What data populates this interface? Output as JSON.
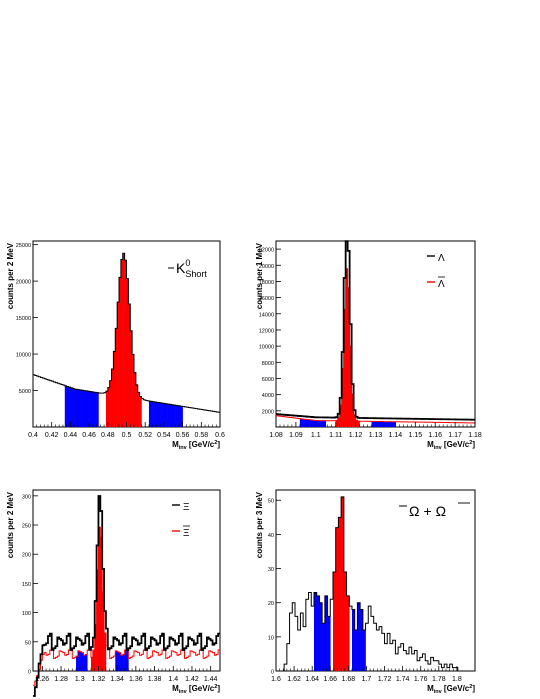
{
  "chart_data": [
    {
      "id": "k0short",
      "type": "histogram",
      "ylabel": "counts per 2 MeV",
      "xlabel_main": "M",
      "xlabel_sub": "inv",
      "xlabel_unit": "[GeV/c",
      "xlabel_sup": "2",
      "xlabel_end": "]",
      "xlim": [
        0.4,
        0.6
      ],
      "ylim": [
        0,
        25500
      ],
      "xticks": [
        0.4,
        0.42,
        0.44,
        0.46,
        0.48,
        0.5,
        0.52,
        0.54,
        0.56,
        0.58,
        0.6
      ],
      "xtick_labels": [
        "0.4",
        "0.42",
        "0.44",
        "0.46",
        "0.48",
        "0.5",
        "0.52",
        "0.54",
        "0.56",
        "0.58",
        "0.6"
      ],
      "yticks": [
        5000,
        10000,
        15000,
        20000,
        25000
      ],
      "ytick_labels": [
        "5000",
        "10000",
        "15000",
        "20000",
        "25000"
      ],
      "legend": {
        "symbol": "K",
        "sup": "0",
        "sub": "Short"
      },
      "peak": {
        "mu": 0.497,
        "sigma": 0.0065,
        "amp": 19700
      },
      "background": {
        "y_start": 7200,
        "y_end": 2000,
        "x_knee": 0.445,
        "y_knee": 5200
      },
      "signal_region": [
        0.478,
        0.516
      ],
      "sideband_regions": [
        [
          0.435,
          0.47
        ],
        [
          0.524,
          0.56
        ]
      ],
      "colors": {
        "signal": "#ff0000",
        "sideband": "#0000ff",
        "line": "#000000"
      }
    },
    {
      "id": "lambda",
      "type": "histogram",
      "ylabel": "counts per 1 MeV",
      "xlabel_main": "M",
      "xlabel_sub": "inv",
      "xlabel_unit": "[GeV/c",
      "xlabel_sup": "2",
      "xlabel_end": "]",
      "xlim": [
        1.08,
        1.18
      ],
      "ylim": [
        0,
        23000
      ],
      "xticks": [
        1.08,
        1.09,
        1.1,
        1.11,
        1.12,
        1.13,
        1.14,
        1.15,
        1.16,
        1.17,
        1.18
      ],
      "xtick_labels": [
        "1.08",
        "1.09",
        "1.1",
        "1.11",
        "1.12",
        "1.13",
        "1.14",
        "1.15",
        "1.16",
        "1.17",
        "1.18"
      ],
      "yticks": [
        2000,
        4000,
        6000,
        8000,
        10000,
        12000,
        14000,
        16000,
        18000,
        20000,
        22000
      ],
      "ytick_labels": [
        "2000",
        "4000",
        "6000",
        "8000",
        "10000",
        "12000",
        "14000",
        "16000",
        "18000",
        "20000",
        "22000"
      ],
      "legend": [
        {
          "symbol": "Λ",
          "color": "#000000"
        },
        {
          "symbol": "Λ",
          "bar": true,
          "color": "#ff0000"
        }
      ],
      "series": [
        {
          "name": "Λ",
          "color": "#000000",
          "peak": {
            "mu": 1.1157,
            "sigma": 0.0015,
            "amp": 23800
          },
          "background": {
            "y_start": 1600,
            "y_end": 900,
            "x_knee": 1.1,
            "y_knee": 1200
          }
        },
        {
          "name": "anti-Λ",
          "color": "#ff0000",
          "peak": {
            "mu": 1.1157,
            "sigma": 0.0015,
            "amp": 19000
          },
          "background": {
            "y_start": 1400,
            "y_end": 500,
            "x_knee": 1.1,
            "y_knee": 800
          }
        }
      ],
      "signal_region": [
        1.11,
        1.122
      ],
      "sideband_regions": [
        [
          1.092,
          1.1045
        ],
        [
          1.128,
          1.14
        ]
      ],
      "colors": {
        "signal": "#ff0000",
        "sideband": "#0000ff"
      }
    },
    {
      "id": "xi",
      "type": "histogram",
      "ylabel": "counts per 2 MeV",
      "xlabel_main": "M",
      "xlabel_sub": "inv",
      "xlabel_unit": "[GeV/c",
      "xlabel_sup": "2",
      "xlabel_end": "]",
      "xlim": [
        1.25,
        1.45
      ],
      "ylim": [
        0,
        310
      ],
      "xticks": [
        1.26,
        1.28,
        1.3,
        1.32,
        1.34,
        1.36,
        1.38,
        1.4,
        1.42,
        1.44
      ],
      "xtick_labels": [
        "1.26",
        "1.28",
        "1.3",
        "1.32",
        "1.34",
        "1.36",
        "1.38",
        "1.4",
        "1.42",
        "1.44"
      ],
      "yticks": [
        0,
        50,
        100,
        150,
        200,
        250,
        300
      ],
      "ytick_labels": [
        "0",
        "50",
        "100",
        "150",
        "200",
        "250",
        "300"
      ],
      "legend": [
        {
          "symbol": "Ξ",
          "color": "#000000"
        },
        {
          "symbol": "Ξ",
          "bar": true,
          "color": "#ff0000"
        }
      ],
      "series": [
        {
          "name": "Ξ",
          "color": "#000000",
          "peak": {
            "mu": 1.3217,
            "sigma": 0.0028,
            "amp": 255
          },
          "bkg_level": 50,
          "bkg_start": 1.262
        },
        {
          "name": "anti-Ξ",
          "color": "#ff0000",
          "peak": {
            "mu": 1.3217,
            "sigma": 0.0028,
            "amp": 220
          },
          "bkg_level": 30,
          "bkg_start": 1.262
        }
      ],
      "signal_region": [
        1.313,
        1.329
      ],
      "sideband_regions": [
        [
          1.296,
          1.308
        ],
        [
          1.338,
          1.351
        ]
      ],
      "colors": {
        "signal": "#ff0000",
        "sideband": "#0000ff"
      }
    },
    {
      "id": "omega",
      "type": "histogram",
      "ylabel": "counts per 3 MeV",
      "xlabel_main": "M",
      "xlabel_sub": "inv",
      "xlabel_unit": "[GeV/c",
      "xlabel_sup": "2",
      "xlabel_end": "]",
      "xlim": [
        1.6,
        1.82
      ],
      "ylim": [
        0,
        53
      ],
      "xticks": [
        1.6,
        1.62,
        1.64,
        1.66,
        1.68,
        1.7,
        1.72,
        1.74,
        1.76,
        1.78,
        1.8
      ],
      "xtick_labels": [
        "1.6",
        "1.62",
        "1.64",
        "1.66",
        "1.68",
        "1.7",
        "1.72",
        "1.74",
        "1.76",
        "1.78",
        "1.8"
      ],
      "yticks": [
        0,
        10,
        20,
        30,
        40,
        50
      ],
      "ytick_labels": [
        "0",
        "10",
        "20",
        "30",
        "40",
        "50"
      ],
      "legend": {
        "symbol": "Ω",
        "plus": "+",
        "bar_symbol": "Ω"
      },
      "bins": [
        [
          1.609,
          1.612,
          2
        ],
        [
          1.612,
          1.615,
          8
        ],
        [
          1.615,
          1.618,
          17
        ],
        [
          1.618,
          1.621,
          20
        ],
        [
          1.621,
          1.624,
          16
        ],
        [
          1.624,
          1.627,
          12
        ],
        [
          1.627,
          1.63,
          17
        ],
        [
          1.63,
          1.633,
          13
        ],
        [
          1.633,
          1.636,
          21
        ],
        [
          1.636,
          1.639,
          23
        ],
        [
          1.639,
          1.642,
          19
        ],
        [
          1.642,
          1.645,
          23
        ],
        [
          1.645,
          1.648,
          22
        ],
        [
          1.648,
          1.651,
          20
        ],
        [
          1.651,
          1.654,
          14
        ],
        [
          1.654,
          1.657,
          22
        ],
        [
          1.657,
          1.66,
          16
        ],
        [
          1.66,
          1.663,
          21
        ],
        [
          1.663,
          1.666,
          29
        ],
        [
          1.666,
          1.669,
          42
        ],
        [
          1.669,
          1.672,
          45
        ],
        [
          1.672,
          1.675,
          51
        ],
        [
          1.675,
          1.678,
          29
        ],
        [
          1.678,
          1.681,
          22
        ],
        [
          1.681,
          1.684,
          19
        ],
        [
          1.684,
          1.687,
          18
        ],
        [
          1.687,
          1.69,
          12
        ],
        [
          1.69,
          1.693,
          20
        ],
        [
          1.693,
          1.696,
          18
        ],
        [
          1.696,
          1.699,
          12
        ],
        [
          1.699,
          1.702,
          14
        ],
        [
          1.702,
          1.705,
          19
        ],
        [
          1.705,
          1.708,
          16
        ],
        [
          1.708,
          1.711,
          14
        ],
        [
          1.711,
          1.714,
          12
        ],
        [
          1.714,
          1.717,
          13
        ],
        [
          1.717,
          1.72,
          11
        ],
        [
          1.72,
          1.723,
          8
        ],
        [
          1.723,
          1.726,
          11
        ],
        [
          1.726,
          1.729,
          8
        ],
        [
          1.729,
          1.732,
          9
        ],
        [
          1.732,
          1.735,
          5
        ],
        [
          1.735,
          1.738,
          7
        ],
        [
          1.738,
          1.741,
          8
        ],
        [
          1.741,
          1.744,
          6
        ],
        [
          1.744,
          1.747,
          5
        ],
        [
          1.747,
          1.75,
          7
        ],
        [
          1.75,
          1.753,
          5
        ],
        [
          1.753,
          1.756,
          6
        ],
        [
          1.756,
          1.759,
          3
        ],
        [
          1.759,
          1.762,
          4
        ],
        [
          1.762,
          1.765,
          5
        ],
        [
          1.765,
          1.768,
          3
        ],
        [
          1.768,
          1.771,
          2
        ],
        [
          1.771,
          1.774,
          4
        ],
        [
          1.774,
          1.777,
          3
        ],
        [
          1.777,
          1.78,
          3
        ],
        [
          1.78,
          1.783,
          2
        ],
        [
          1.783,
          1.786,
          1
        ],
        [
          1.786,
          1.789,
          2
        ],
        [
          1.789,
          1.792,
          1
        ],
        [
          1.792,
          1.795,
          2
        ],
        [
          1.795,
          1.798,
          1
        ],
        [
          1.798,
          1.801,
          1
        ]
      ],
      "signal_region": [
        1.663,
        1.681
      ],
      "sideband_regions": [
        [
          1.642,
          1.66
        ],
        [
          1.684,
          1.699
        ]
      ],
      "colors": {
        "signal": "#ff0000",
        "sideband": "#0000ff",
        "line": "#000000"
      }
    }
  ]
}
